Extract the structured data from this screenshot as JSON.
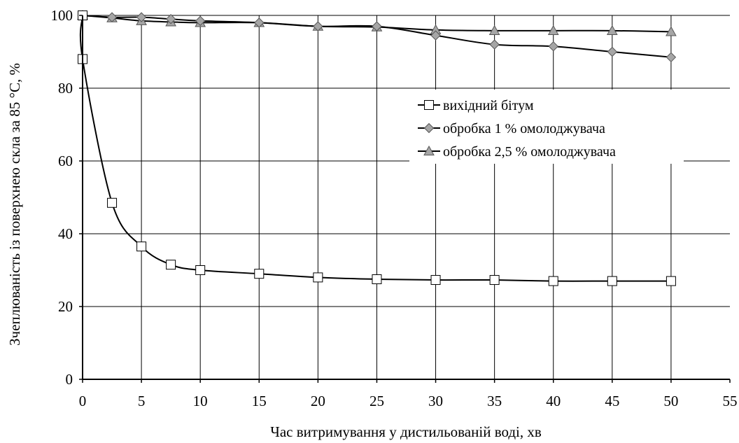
{
  "chart_data": {
    "type": "line",
    "title": "",
    "xlabel": "Час витримування у дистильованій воді, хв",
    "ylabel": "Зчеплюваність із поверхнею скла за 85 °С, %",
    "xlim": [
      0,
      55
    ],
    "ylim": [
      0,
      100
    ],
    "xticks": [
      0,
      5,
      10,
      15,
      20,
      25,
      30,
      35,
      40,
      45,
      50,
      55
    ],
    "yticks": [
      0,
      20,
      40,
      60,
      80,
      100
    ],
    "grid": true,
    "legend_position": "center-right",
    "series": [
      {
        "name": "вихідний бітум",
        "marker": "square",
        "marker_fill": "#ffffff",
        "x": [
          0,
          0,
          2.5,
          5,
          7.5,
          10,
          15,
          20,
          25,
          30,
          35,
          40,
          45,
          50
        ],
        "y": [
          100,
          88,
          48.5,
          36.5,
          31.5,
          30,
          29,
          28,
          27.5,
          27.3,
          27.3,
          27,
          27,
          27
        ]
      },
      {
        "name": "обробка 1 % омолоджувача",
        "marker": "diamond",
        "marker_fill": "#a6a6a6",
        "x": [
          0,
          2.5,
          5,
          7.5,
          10,
          15,
          20,
          25,
          30,
          35,
          40,
          45,
          50
        ],
        "y": [
          100,
          99.5,
          99.5,
          99,
          98.5,
          98,
          97,
          97,
          94.5,
          92,
          91.5,
          90,
          88.5
        ]
      },
      {
        "name": "обробка 2,5 % омолоджувача",
        "marker": "triangle",
        "marker_fill": "#a6a6a6",
        "x": [
          0,
          2.5,
          5,
          7.5,
          10,
          15,
          20,
          25,
          30,
          35,
          40,
          45,
          50
        ],
        "y": [
          100,
          99.3,
          98.5,
          98.2,
          98,
          98,
          97,
          96.8,
          96,
          95.8,
          95.8,
          95.8,
          95.5
        ]
      }
    ]
  }
}
